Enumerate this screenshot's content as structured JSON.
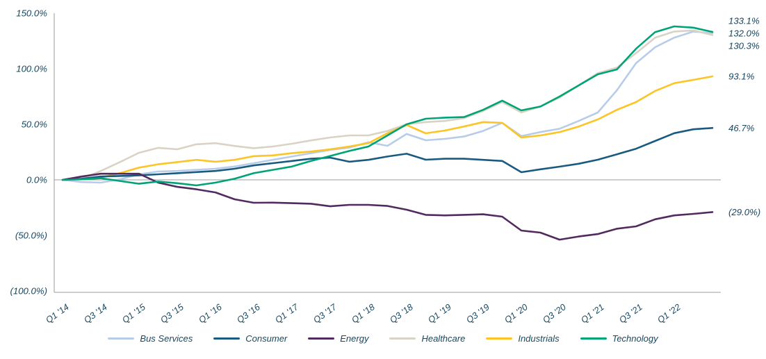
{
  "chart_data": {
    "type": "line",
    "title": "",
    "xlabel": "",
    "ylabel": "",
    "categories": [
      "Q1 '14",
      "Q2 '14",
      "Q3 '14",
      "Q4 '14",
      "Q1 '15",
      "Q2 '15",
      "Q3 '15",
      "Q4 '15",
      "Q1 '16",
      "Q2 '16",
      "Q3 '16",
      "Q4 '16",
      "Q1 '17",
      "Q2 '17",
      "Q3 '17",
      "Q4 '17",
      "Q1 '18",
      "Q2 '18",
      "Q3 '18",
      "Q4 '18",
      "Q1 '19",
      "Q2 '19",
      "Q3 '19",
      "Q4 '19",
      "Q1 '20",
      "Q2 '20",
      "Q3 '20",
      "Q4 '20",
      "Q1 '21",
      "Q2 '21",
      "Q3 '21",
      "Q4 '21",
      "Q1 '22",
      "Q2 '22",
      "Q3 '22"
    ],
    "x_axis_tick_labels": [
      "Q1 '14",
      "Q3 '14",
      "Q1 '15",
      "Q3 '15",
      "Q1 '16",
      "Q3 '16",
      "Q1 '17",
      "Q3 '17",
      "Q1 '18",
      "Q3 '18",
      "Q1 '19",
      "Q3 '19",
      "Q1 '20",
      "Q3 '20",
      "Q1 '21",
      "Q3 '21",
      "Q1 '22"
    ],
    "y_axis": {
      "min": -100,
      "max": 150,
      "ticks": [
        {
          "value": 150,
          "label": "150.0%"
        },
        {
          "value": 100,
          "label": "100.0%"
        },
        {
          "value": 50,
          "label": "50.0%"
        },
        {
          "value": 0,
          "label": "0.0%"
        },
        {
          "value": -50,
          "label": "(50.0%)"
        },
        {
          "value": -100,
          "label": "(100.0%)"
        }
      ]
    },
    "grid": {
      "zero_line": true,
      "other_gridlines": false
    },
    "legend_position": "bottom",
    "axis_color": "#b0b0b0",
    "zero_line_color": "#9b9b9b",
    "text_color": "#17485f",
    "series": [
      {
        "name": "Bus Services",
        "color": "#b7cce8",
        "end_label": "132.0%",
        "end_value": 132.0,
        "values": [
          0,
          -2,
          -2.5,
          0.5,
          5,
          7.5,
          8,
          9,
          10,
          12,
          15,
          18,
          21,
          24,
          27,
          29,
          33.8,
          30.6,
          41.3,
          35.6,
          36.9,
          39,
          44,
          51.3,
          39.4,
          43,
          46,
          53,
          60.6,
          80.6,
          105,
          119.4,
          128,
          133.5,
          132.0
        ]
      },
      {
        "name": "Consumer",
        "color": "#1a5a80",
        "end_label": "46.7%",
        "end_value": 46.7,
        "values": [
          0,
          1,
          3,
          3.5,
          4,
          5,
          6,
          7,
          8,
          10,
          13,
          15,
          17,
          19,
          20,
          16.3,
          18,
          21,
          23.5,
          18.1,
          19,
          19,
          18,
          17,
          6.9,
          9.5,
          11.9,
          14.5,
          18.1,
          23,
          28,
          35,
          42,
          45.5,
          46.7
        ]
      },
      {
        "name": "Energy",
        "color": "#522a60",
        "end_label": "(29.0%)",
        "end_value": -29.0,
        "values": [
          0,
          3,
          5.5,
          5.5,
          5.5,
          -2.5,
          -6.3,
          -8.5,
          -11.3,
          -17.5,
          -20.6,
          -20.5,
          -21,
          -21.5,
          -23.8,
          -22.5,
          -22.5,
          -23.5,
          -26.9,
          -31.5,
          -32,
          -31.5,
          -31,
          -33.1,
          -45.6,
          -47.5,
          -53.8,
          -51,
          -48.8,
          -44,
          -41.9,
          -35.5,
          -32,
          -30.6,
          -29.0
        ]
      },
      {
        "name": "Healthcare",
        "color": "#d9d3c5",
        "end_label": "130.3%",
        "end_value": 130.3,
        "values": [
          0,
          1,
          8,
          16,
          24.4,
          28.8,
          27.5,
          32,
          33,
          30.5,
          28.5,
          30,
          32.5,
          35.5,
          38.1,
          40,
          40,
          44,
          50,
          52,
          53,
          55.5,
          62,
          70,
          60.6,
          66,
          74,
          85,
          96,
          101,
          114,
          128,
          133.5,
          134.5,
          130.3
        ]
      },
      {
        "name": "Industrials",
        "color": "#fcc425",
        "end_label": "93.1%",
        "end_value": 93.1,
        "values": [
          0,
          1,
          2,
          6,
          11,
          14,
          16,
          18,
          16.3,
          18,
          21.3,
          22,
          24,
          25.5,
          27.5,
          30,
          33,
          42,
          49.4,
          41.9,
          44.4,
          48,
          52,
          51.3,
          38.1,
          40,
          43,
          48,
          54.4,
          63,
          70,
          80,
          87,
          90,
          93.1
        ]
      },
      {
        "name": "Technology",
        "color": "#00a376",
        "end_label": "133.1%",
        "end_value": 133.1,
        "values": [
          0,
          0.5,
          1.5,
          -1,
          -3.5,
          -1.5,
          -3,
          -5,
          -2.5,
          1,
          6,
          9,
          12,
          17,
          21.5,
          26,
          30,
          40,
          50,
          55,
          56,
          56.5,
          63,
          71.3,
          62.5,
          66,
          75,
          85,
          95,
          99.4,
          118,
          133,
          138.1,
          137,
          133.1
        ]
      }
    ]
  }
}
